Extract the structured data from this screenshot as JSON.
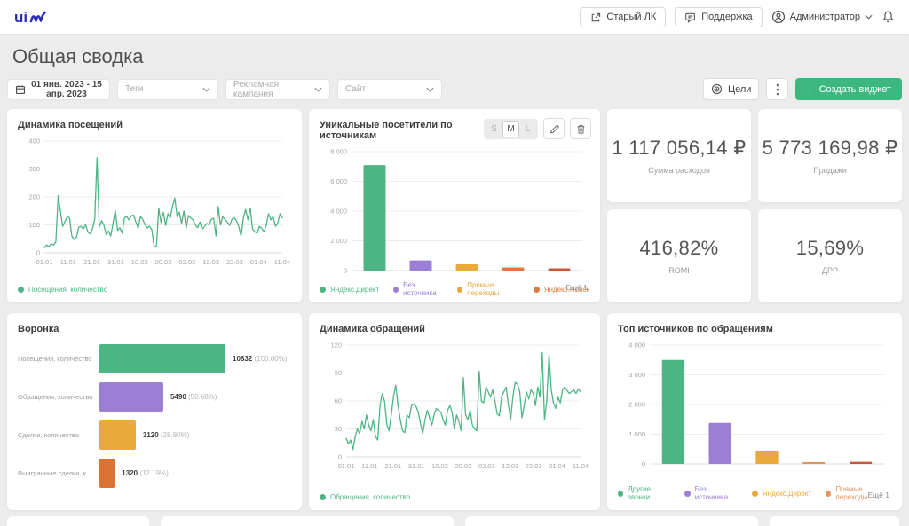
{
  "header": {
    "logo_text": "uis",
    "old_lk_label": "Старый ЛК",
    "support_label": "Поддержка",
    "user_label": "Администратор"
  },
  "page": {
    "title": "Общая сводка"
  },
  "filters": {
    "date_range": "01 янв. 2023 - 15 апр. 2023",
    "tags_placeholder": "Теги",
    "campaign_placeholder": "Рекламная кампания",
    "site_placeholder": "Сайт",
    "goals_label": "Цели",
    "create_widget_label": "Создать виджет"
  },
  "widget_controls": {
    "sizes": [
      "S",
      "M",
      "L"
    ],
    "selected": "M"
  },
  "kpi": [
    {
      "value": "1 117 056,14 ₽",
      "label": "Сумма расходов"
    },
    {
      "value": "5 773 169,98 ₽",
      "label": "Продажи"
    },
    {
      "value": "416,82%",
      "label": "ROMI"
    },
    {
      "value": "15,69%",
      "label": "ДРР"
    }
  ],
  "colors": {
    "accent_green": "#3cb87f",
    "series_green": "#4cb583",
    "series_purple": "#9b7fd4",
    "series_amber": "#eaa93c",
    "series_orange": "#e0793c",
    "series_red": "#cf5340",
    "logo_blue": "#2f2db8"
  },
  "chart_data": [
    {
      "type": "line",
      "title": "Динамика посещений",
      "legend": [
        "Посещения, количество"
      ],
      "colors": [
        "#4cb583"
      ],
      "color": "#4cb583",
      "ylim": [
        0,
        400
      ],
      "yticks": [
        0,
        100,
        200,
        300,
        400
      ],
      "ytick_labels": [
        "0",
        "100",
        "200",
        "300",
        "400"
      ],
      "xticks": [
        "01.01",
        "11.01",
        "21.01",
        "31.01",
        "10.02",
        "20.02",
        "02.03",
        "12.03",
        "22.03",
        "01.04",
        "11.04"
      ],
      "grid": true,
      "legend_position": "bottom",
      "series": [
        {
          "name": "Посещения, количество",
          "values": [
            18,
            28,
            22,
            32,
            28,
            38,
            205,
            150,
            95,
            112,
            130,
            125,
            60,
            48,
            55,
            92,
            95,
            85,
            100,
            75,
            68,
            85,
            120,
            340,
            92,
            115,
            100,
            65,
            78,
            60,
            105,
            152,
            80,
            90,
            70,
            125,
            130,
            118,
            132,
            135,
            110,
            88,
            130,
            120,
            100,
            90,
            95,
            82,
            20,
            25,
            160,
            108,
            145,
            98,
            140,
            124,
            165,
            196,
            130,
            145,
            105,
            150,
            88,
            134,
            125,
            118,
            100,
            90,
            110,
            84,
            95,
            105,
            100,
            120,
            124,
            60,
            165,
            100,
            130,
            118,
            110,
            98,
            120,
            126,
            114,
            94,
            60,
            125,
            155,
            118,
            160,
            85,
            75,
            70,
            95,
            88,
            75,
            100,
            140,
            118,
            130,
            95,
            105,
            140,
            125
          ]
        }
      ]
    },
    {
      "type": "bar",
      "title": "Уникальные посетители по источникам",
      "categories": [
        "Яндекс.Директ",
        "Без источника",
        "Прямые переходы",
        "Яндекс.Поиск",
        ""
      ],
      "values": [
        7100,
        680,
        420,
        210,
        150
      ],
      "colors": [
        "#4cb583",
        "#9b7fd4",
        "#eaa93c",
        "#e0793c",
        "#cf5340"
      ],
      "legend": [
        "Яндекс.Директ",
        "Без источника",
        "Прямые переходы",
        "Яндекс.Поиск"
      ],
      "more_label": "Ещё 1",
      "ylim": [
        0,
        8000
      ],
      "yticks": [
        0,
        2000,
        4000,
        6000,
        8000
      ],
      "ytick_labels": [
        "0",
        "2 000",
        "4 000",
        "6 000",
        "8 000"
      ],
      "grid": true,
      "legend_position": "bottom"
    },
    {
      "type": "hbar",
      "title": "Воронка",
      "max": 10832,
      "rows": [
        {
          "label": "Посещения, количество",
          "value": "10832",
          "pct": "(100.00%)",
          "num": 10832,
          "color": "#4cb583"
        },
        {
          "label": "Обращения, количество",
          "value": "5490",
          "pct": "(50.68%)",
          "num": 5490,
          "color": "#9b7fd4"
        },
        {
          "label": "Сделки, количество",
          "value": "3120",
          "pct": "(28.80%)",
          "num": 3120,
          "color": "#eaa93c"
        },
        {
          "label": "Выигранные сделки, к...",
          "value": "1320",
          "pct": "(12.19%)",
          "num": 1320,
          "color": "#dd7130"
        }
      ]
    },
    {
      "type": "line",
      "title": "Динамика обращений",
      "legend": [
        "Обращения, количество"
      ],
      "colors": [
        "#4cb583"
      ],
      "color": "#4cb583",
      "ylim": [
        0,
        120
      ],
      "yticks": [
        0,
        30,
        60,
        90,
        120
      ],
      "ytick_labels": [
        "0",
        "30",
        "60",
        "90",
        "120"
      ],
      "xticks": [
        "01.01",
        "11.01",
        "21.01",
        "31.01",
        "10.02",
        "20.02",
        "02.03",
        "12.03",
        "22.03",
        "01.04",
        "11.04"
      ],
      "grid": true,
      "legend_position": "bottom",
      "series": [
        {
          "name": "Обращения, количество",
          "values": [
            20,
            14,
            18,
            8,
            22,
            30,
            25,
            38,
            30,
            45,
            34,
            28,
            40,
            22,
            18,
            55,
            68,
            60,
            35,
            28,
            45,
            65,
            77,
            55,
            40,
            28,
            26,
            45,
            42,
            55,
            57,
            54,
            48,
            35,
            25,
            40,
            50,
            42,
            34,
            45,
            52,
            50,
            48,
            40,
            34,
            50,
            55,
            48,
            30,
            45,
            38,
            28,
            85,
            45,
            40,
            50,
            34,
            30,
            28,
            92,
            60,
            58,
            75,
            70,
            64,
            72,
            60,
            46,
            44,
            65,
            70,
            75,
            55,
            40,
            65,
            80,
            78,
            70,
            42,
            55,
            70,
            62,
            72,
            68,
            55,
            75,
            64,
            112,
            40,
            60,
            110,
            72,
            58,
            52,
            64,
            58,
            72,
            75,
            71,
            68,
            70,
            72,
            68,
            73,
            70
          ]
        }
      ]
    },
    {
      "type": "bar",
      "title": "Топ источников по обращениям",
      "categories": [
        "Другие звонки",
        "Без источника",
        "Яндекс.Директ",
        "Прямые переходы",
        ""
      ],
      "values": [
        3500,
        1380,
        420,
        60,
        70
      ],
      "colors": [
        "#4cb583",
        "#9b7fd4",
        "#eaa93c",
        "#e8935c",
        "#cf5340"
      ],
      "legend": [
        "Другие звонки",
        "Без источника",
        "Яндекс.Директ",
        "Прямые переходы"
      ],
      "more_label": "Ещё 1",
      "ylim": [
        0,
        4000
      ],
      "yticks": [
        0,
        1000,
        2000,
        3000,
        4000
      ],
      "ytick_labels": [
        "0",
        "1 000",
        "2 000",
        "3 000",
        "4 000"
      ],
      "grid": true,
      "legend_position": "bottom"
    }
  ]
}
